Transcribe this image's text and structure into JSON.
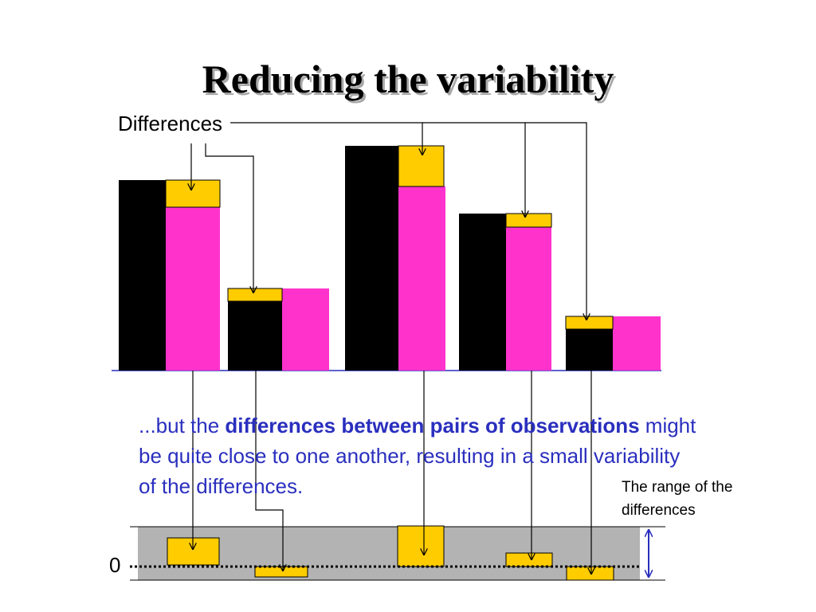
{
  "title": "Reducing the variability",
  "differences_label": "Differences",
  "body": {
    "part1": "...but the ",
    "bold": "differences between pairs of observations",
    "part2": " might be quite close to one another, resulting in a small variability of the differences."
  },
  "range_label": "The range of the differences",
  "zero_label": "0",
  "colors": {
    "first_bar": "#000000",
    "second_bar": "#ff33cc",
    "difference": "#ffcc00",
    "band": "#b3b3b3",
    "text_blue": "#2a2fbe",
    "range_arrow": "#2a2fbe"
  }
}
